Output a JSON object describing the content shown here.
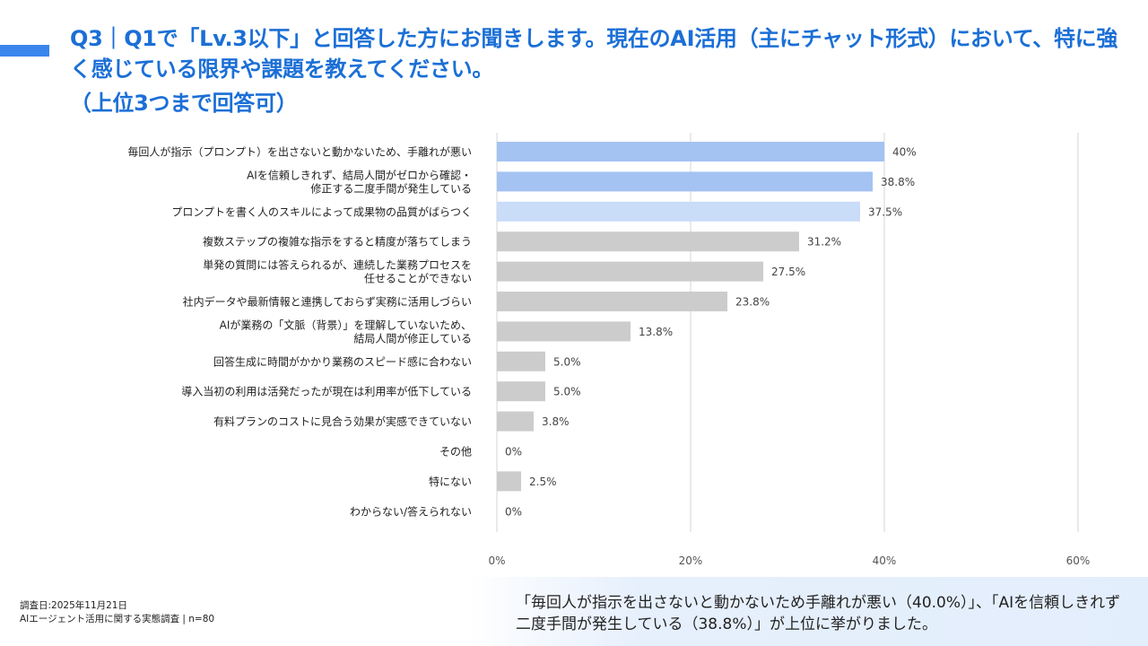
{
  "header": {
    "title_line1": "Q3｜Q1で「Lv.3以下」と回答した方にお聞きします。現在のAI活用（主にチャット形式）において、特に強く感じている限界や課題を教えてください。",
    "title_line2": "（上位3つまで回答可）"
  },
  "colors": {
    "accent": "#3b86ec",
    "title": "#1b6fd6",
    "bar_top1": "#a4c3f2",
    "bar_top3": "#c9dcf8",
    "bar_other": "#cccccc",
    "grid": "#d6d6d6"
  },
  "chart_data": {
    "type": "bar",
    "orientation": "horizontal",
    "categories": [
      [
        "毎回人が指示（プロンプト）を出さないと動かないため、手離れが悪い"
      ],
      [
        "AIを信頼しきれず、結局人間がゼロから確認・",
        "修正する二度手間が発生している"
      ],
      [
        "プロンプトを書く人のスキルによって成果物の品質がばらつく"
      ],
      [
        "複数ステップの複雑な指示をすると精度が落ちてしまう"
      ],
      [
        "単発の質問には答えられるが、連続した業務プロセスを",
        "任せることができない"
      ],
      [
        "社内データや最新情報と連携しておらず実務に活用しづらい"
      ],
      [
        "AIが業務の「文脈（背景）」を理解していないため、",
        "結局人間が修正している"
      ],
      [
        "回答生成に時間がかかり業務のスピード感に合わない"
      ],
      [
        "導入当初の利用は活発だったが現在は利用率が低下している"
      ],
      [
        "有料プランのコストに見合う効果が実感できていない"
      ],
      [
        "その他"
      ],
      [
        "特にない"
      ],
      [
        "わからない/答えられない"
      ]
    ],
    "values": [
      40,
      38.8,
      37.5,
      31.2,
      27.5,
      23.8,
      13.8,
      5.0,
      5.0,
      3.8,
      0,
      2.5,
      0
    ],
    "value_labels": [
      "40%",
      "38.8%",
      "37.5%",
      "31.2%",
      "27.5%",
      "23.8%",
      "13.8%",
      "5.0%",
      "5.0%",
      "3.8%",
      "0%",
      "2.5%",
      "0%"
    ],
    "highlight": [
      "top1",
      "top1",
      "top3",
      "other",
      "other",
      "other",
      "other",
      "other",
      "other",
      "other",
      "other",
      "other",
      "other"
    ],
    "xlim": [
      0,
      60
    ],
    "xticks": [
      0,
      20,
      40,
      60
    ],
    "xtick_labels": [
      "0%",
      "20%",
      "40%",
      "60%"
    ],
    "grid": true
  },
  "footer": {
    "survey_date": "調査日:2025年11月21日",
    "survey_name": "AIエージェント活用に関する実態調査 | n=80"
  },
  "summary": {
    "text": "「毎回人が指示を出さないと動かないため手離れが悪い（40.0%）」、「AIを信頼しきれず二度手間が発生している（38.8%）」が上位に挙がりました。"
  }
}
